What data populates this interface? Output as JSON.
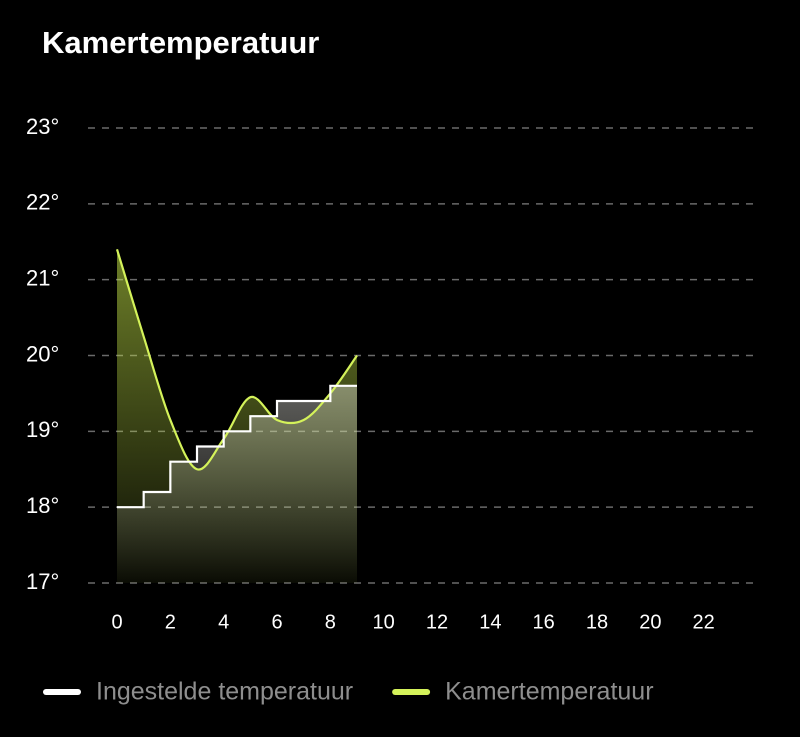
{
  "chart_data": {
    "type": "line",
    "title": "Kamertemperatuur",
    "x": [
      0,
      1,
      2,
      3,
      4,
      5,
      6,
      7,
      8,
      9
    ],
    "series": [
      {
        "name": "Ingestelde temperatuur",
        "color": "#ffffff",
        "step": true,
        "values": [
          18,
          18.2,
          18.6,
          18.8,
          19,
          19.2,
          19.4,
          19.4,
          19.6,
          19.6
        ]
      },
      {
        "name": "Kamertemperatuur",
        "color": "#d4f25a",
        "values": [
          21.4,
          20.25,
          19.15,
          18.5,
          18.9,
          19.45,
          19.15,
          19.15,
          19.5,
          20.0
        ]
      }
    ],
    "xlim": [
      0,
      24
    ],
    "xticks": [
      0,
      2,
      4,
      6,
      8,
      10,
      12,
      14,
      16,
      18,
      20,
      22
    ],
    "ylim": [
      17,
      23
    ],
    "yticks": [
      {
        "value": 17,
        "label": "17°"
      },
      {
        "value": 18,
        "label": "18°"
      },
      {
        "value": 19,
        "label": "19°"
      },
      {
        "value": 20,
        "label": "20°"
      },
      {
        "value": 21,
        "label": "21°"
      },
      {
        "value": 22,
        "label": "22°"
      },
      {
        "value": 23,
        "label": "23°"
      }
    ],
    "grid": true
  }
}
